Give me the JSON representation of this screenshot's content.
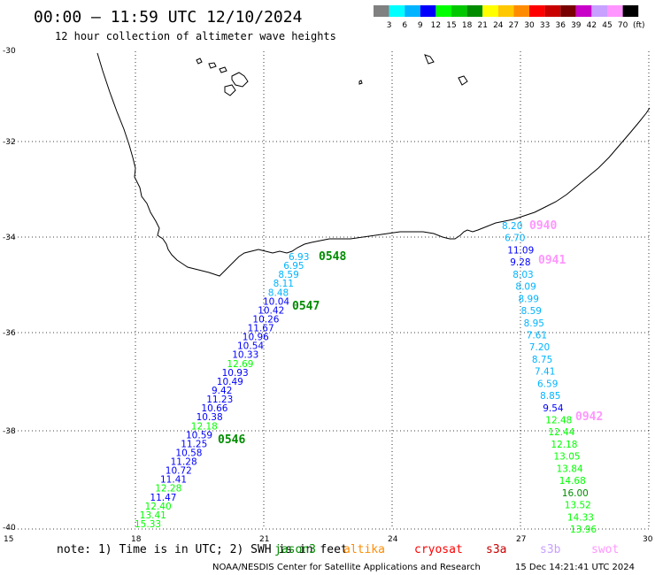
{
  "title": "00:00 – 11:59 UTC 12/10/2024",
  "subtitle": "12 hour collection of altimeter wave heights",
  "scale": {
    "labels": [
      "3",
      "6",
      "9",
      "12",
      "15",
      "18",
      "21",
      "24",
      "27",
      "30",
      "33",
      "36",
      "39",
      "42",
      "45",
      "70"
    ],
    "unit": "(ft)",
    "colors": [
      "#808080",
      "#00ffff",
      "#00b4ff",
      "#0000ff",
      "#00ff00",
      "#00c800",
      "#008c00",
      "#ffff00",
      "#ffc800",
      "#ff8c00",
      "#ff0000",
      "#c80000",
      "#780000",
      "#c800c8",
      "#c8a0ff",
      "#ff96ff",
      "#000000"
    ]
  },
  "axes": {
    "lat_labels": [
      "-30",
      "-32",
      "-34",
      "-36",
      "-38",
      "-40"
    ],
    "lon_labels": [
      "15",
      "18",
      "21",
      "24",
      "27",
      "30"
    ]
  },
  "passes": [
    {
      "label": "0548",
      "color": "#008c00"
    },
    {
      "label": "0547",
      "color": "#008c00"
    },
    {
      "label": "0546",
      "color": "#008c00"
    },
    {
      "label": "0940",
      "color": "#ff96ff"
    },
    {
      "label": "0941",
      "color": "#ff96ff"
    },
    {
      "label": "0942",
      "color": "#ff96ff"
    }
  ],
  "track_west": [
    {
      "v": "6.93",
      "c": "#00b4ff"
    },
    {
      "v": "6.95",
      "c": "#00b4ff"
    },
    {
      "v": "8.59",
      "c": "#00b4ff"
    },
    {
      "v": "8.11",
      "c": "#00b4ff"
    },
    {
      "v": "8.48",
      "c": "#00b4ff"
    },
    {
      "v": "10.04",
      "c": "#0000ff"
    },
    {
      "v": "10.42",
      "c": "#0000ff"
    },
    {
      "v": "10.26",
      "c": "#0000ff"
    },
    {
      "v": "11.67",
      "c": "#0000ff"
    },
    {
      "v": "10.96",
      "c": "#0000ff"
    },
    {
      "v": "10.54",
      "c": "#0000ff"
    },
    {
      "v": "10.33",
      "c": "#0000ff"
    },
    {
      "v": "12.69",
      "c": "#00ff00"
    },
    {
      "v": "10.93",
      "c": "#0000ff"
    },
    {
      "v": "10.49",
      "c": "#0000ff"
    },
    {
      "v": "9.42",
      "c": "#0000ff"
    },
    {
      "v": "11.23",
      "c": "#0000ff"
    },
    {
      "v": "10.66",
      "c": "#0000ff"
    },
    {
      "v": "10.38",
      "c": "#0000ff"
    },
    {
      "v": "12.18",
      "c": "#00ff00"
    },
    {
      "v": "10.59",
      "c": "#0000ff"
    },
    {
      "v": "11.25",
      "c": "#0000ff"
    },
    {
      "v": "10.58",
      "c": "#0000ff"
    },
    {
      "v": "11.28",
      "c": "#0000ff"
    },
    {
      "v": "10.72",
      "c": "#0000ff"
    },
    {
      "v": "11.41",
      "c": "#0000ff"
    },
    {
      "v": "12.28",
      "c": "#00ff00"
    },
    {
      "v": "11.47",
      "c": "#0000ff"
    },
    {
      "v": "12.40",
      "c": "#00ff00"
    },
    {
      "v": "13.41",
      "c": "#00ff00"
    },
    {
      "v": "15.33",
      "c": "#00ff00"
    }
  ],
  "track_east": [
    {
      "v": "8.20",
      "c": "#00b4ff"
    },
    {
      "v": "6.70",
      "c": "#00b4ff"
    },
    {
      "v": "11.09",
      "c": "#0000ff"
    },
    {
      "v": "9.28",
      "c": "#0000ff"
    },
    {
      "v": "8.03",
      "c": "#00b4ff"
    },
    {
      "v": "8.09",
      "c": "#00b4ff"
    },
    {
      "v": "8.99",
      "c": "#00b4ff"
    },
    {
      "v": "8.59",
      "c": "#00b4ff"
    },
    {
      "v": "8.95",
      "c": "#00b4ff"
    },
    {
      "v": "7.61",
      "c": "#00b4ff"
    },
    {
      "v": "7.20",
      "c": "#00b4ff"
    },
    {
      "v": "8.75",
      "c": "#00b4ff"
    },
    {
      "v": "7.41",
      "c": "#00b4ff"
    },
    {
      "v": "6.59",
      "c": "#00b4ff"
    },
    {
      "v": "8.85",
      "c": "#00b4ff"
    },
    {
      "v": "9.54",
      "c": "#0000ff"
    },
    {
      "v": "12.48",
      "c": "#00ff00"
    },
    {
      "v": "12.44",
      "c": "#00ff00"
    },
    {
      "v": "12.18",
      "c": "#00ff00"
    },
    {
      "v": "13.05",
      "c": "#00ff00"
    },
    {
      "v": "13.84",
      "c": "#00ff00"
    },
    {
      "v": "14.68",
      "c": "#00ff00"
    },
    {
      "v": "16.00",
      "c": "#008c00"
    },
    {
      "v": "13.52",
      "c": "#00ff00"
    },
    {
      "v": "14.33",
      "c": "#00ff00"
    },
    {
      "v": "13.96",
      "c": "#00ff00"
    }
  ],
  "footer": {
    "note": "note: 1) Time is in UTC; 2) SWH is in feet",
    "satellites": [
      {
        "name": "jason3",
        "color": "#008c00"
      },
      {
        "name": "altika",
        "color": "#ff8c00"
      },
      {
        "name": "cryosat",
        "color": "#ff0000"
      },
      {
        "name": "s3a",
        "color": "#c80000"
      },
      {
        "name": "s3b",
        "color": "#c8a0ff"
      },
      {
        "name": "swot",
        "color": "#ff96ff"
      }
    ],
    "credit": "NOAA/NESDIS Center for Satellite Applications and Research",
    "timestamp": "15 Dec 14:21:41 UTC 2024"
  }
}
